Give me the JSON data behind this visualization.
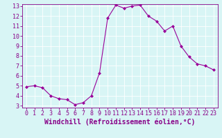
{
  "x": [
    0,
    1,
    2,
    3,
    4,
    5,
    6,
    7,
    8,
    9,
    10,
    11,
    12,
    13,
    14,
    15,
    16,
    17,
    18,
    19,
    20,
    21,
    22,
    23
  ],
  "y": [
    4.9,
    5.0,
    4.8,
    4.0,
    3.7,
    3.6,
    3.1,
    3.3,
    4.0,
    6.3,
    11.8,
    13.1,
    12.8,
    13.0,
    13.1,
    12.0,
    11.5,
    10.5,
    11.0,
    9.0,
    7.9,
    7.2,
    7.0,
    6.6
  ],
  "line_color": "#990099",
  "marker": "D",
  "marker_size": 2,
  "bg_color": "#d8f5f5",
  "grid_color": "#ffffff",
  "xlabel": "Windchill (Refroidissement éolien,°C)",
  "xlabel_fontsize": 7,
  "tick_fontsize": 6,
  "ylim": [
    3,
    13
  ],
  "xlim": [
    -0.5,
    23.5
  ],
  "yticks": [
    3,
    4,
    5,
    6,
    7,
    8,
    9,
    10,
    11,
    12,
    13
  ],
  "xticks": [
    0,
    1,
    2,
    3,
    4,
    5,
    6,
    7,
    8,
    9,
    10,
    11,
    12,
    13,
    14,
    15,
    16,
    17,
    18,
    19,
    20,
    21,
    22,
    23
  ],
  "tick_color": "#880088",
  "spine_color": "#880088"
}
